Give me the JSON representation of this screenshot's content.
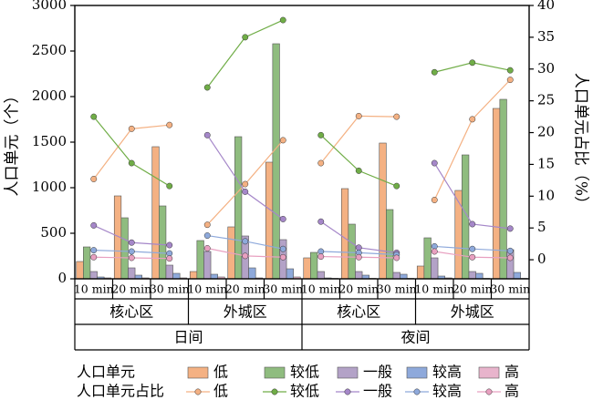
{
  "chart_data": {
    "type": "bar+line",
    "y_left": {
      "label": "人口单元（个）",
      "range": [
        0,
        3000
      ],
      "ticks": [
        0,
        500,
        1000,
        1500,
        2000,
        2500,
        3000
      ]
    },
    "y_right": {
      "label": "人口单元占比（%）",
      "range": [
        -3,
        40
      ],
      "ticks": [
        0,
        5,
        10,
        15,
        20,
        25,
        30,
        35,
        40
      ]
    },
    "x_levels": {
      "time_labels": [
        "10 min",
        "20 min",
        "30 min",
        "10 min",
        "20 min",
        "30 min",
        "10 min",
        "20 min",
        "30 min",
        "10 min",
        "20 min",
        "30 min"
      ],
      "area_labels": [
        "核心区",
        "外城区",
        "核心区",
        "外城区"
      ],
      "period_labels": [
        "日间",
        "夜间"
      ]
    },
    "bar_series": [
      {
        "name": "低",
        "color": "#f4b183",
        "values": [
          190,
          910,
          1450,
          80,
          570,
          1280,
          230,
          990,
          1490,
          140,
          970,
          1870
        ]
      },
      {
        "name": "较低",
        "color": "#8fbc7f",
        "values": [
          350,
          670,
          800,
          420,
          1560,
          2580,
          290,
          600,
          760,
          450,
          1360,
          1970
        ]
      },
      {
        "name": "一般",
        "color": "#b3a2c7",
        "values": [
          80,
          120,
          150,
          300,
          470,
          430,
          80,
          80,
          70,
          230,
          80,
          320
        ]
      },
      {
        "name": "较高",
        "color": "#8ea9db",
        "values": [
          20,
          40,
          60,
          50,
          120,
          110,
          10,
          40,
          50,
          30,
          60,
          70
        ]
      },
      {
        "name": "高",
        "color": "#e8b4cc",
        "values": [
          10,
          10,
          10,
          20,
          10,
          20,
          5,
          5,
          5,
          10,
          5,
          5
        ]
      }
    ],
    "line_series": [
      {
        "name": "低",
        "color": "#f4b183",
        "values": [
          12.7,
          20.6,
          21.2,
          5.5,
          11.9,
          18.8,
          15.2,
          22.6,
          22.5,
          9.4,
          22.1,
          28.3
        ]
      },
      {
        "name": "较低",
        "color": "#70ad47",
        "values": [
          22.5,
          15.2,
          11.6,
          27.1,
          35.0,
          37.7,
          19.6,
          14.0,
          11.6,
          29.5,
          31.0,
          29.8
        ]
      },
      {
        "name": "一般",
        "color": "#a587c9",
        "values": [
          5.4,
          2.7,
          2.3,
          19.6,
          10.7,
          6.4,
          6.0,
          1.9,
          1.1,
          15.2,
          5.6,
          4.9
        ]
      },
      {
        "name": "较高",
        "color": "#8ea9db",
        "values": [
          1.5,
          1.3,
          1.0,
          3.8,
          2.9,
          1.7,
          1.3,
          1.1,
          0.8,
          2.1,
          1.7,
          1.4
        ]
      },
      {
        "name": "高",
        "color": "#e8a0c0",
        "values": [
          0.4,
          0.3,
          0.2,
          1.8,
          0.6,
          0.4,
          0.5,
          0.4,
          0.3,
          1.3,
          0.4,
          0.3
        ]
      }
    ],
    "legend": {
      "bar_row_label": "人口单元",
      "line_row_label": "人口单元占比",
      "placement": "bottom"
    }
  }
}
